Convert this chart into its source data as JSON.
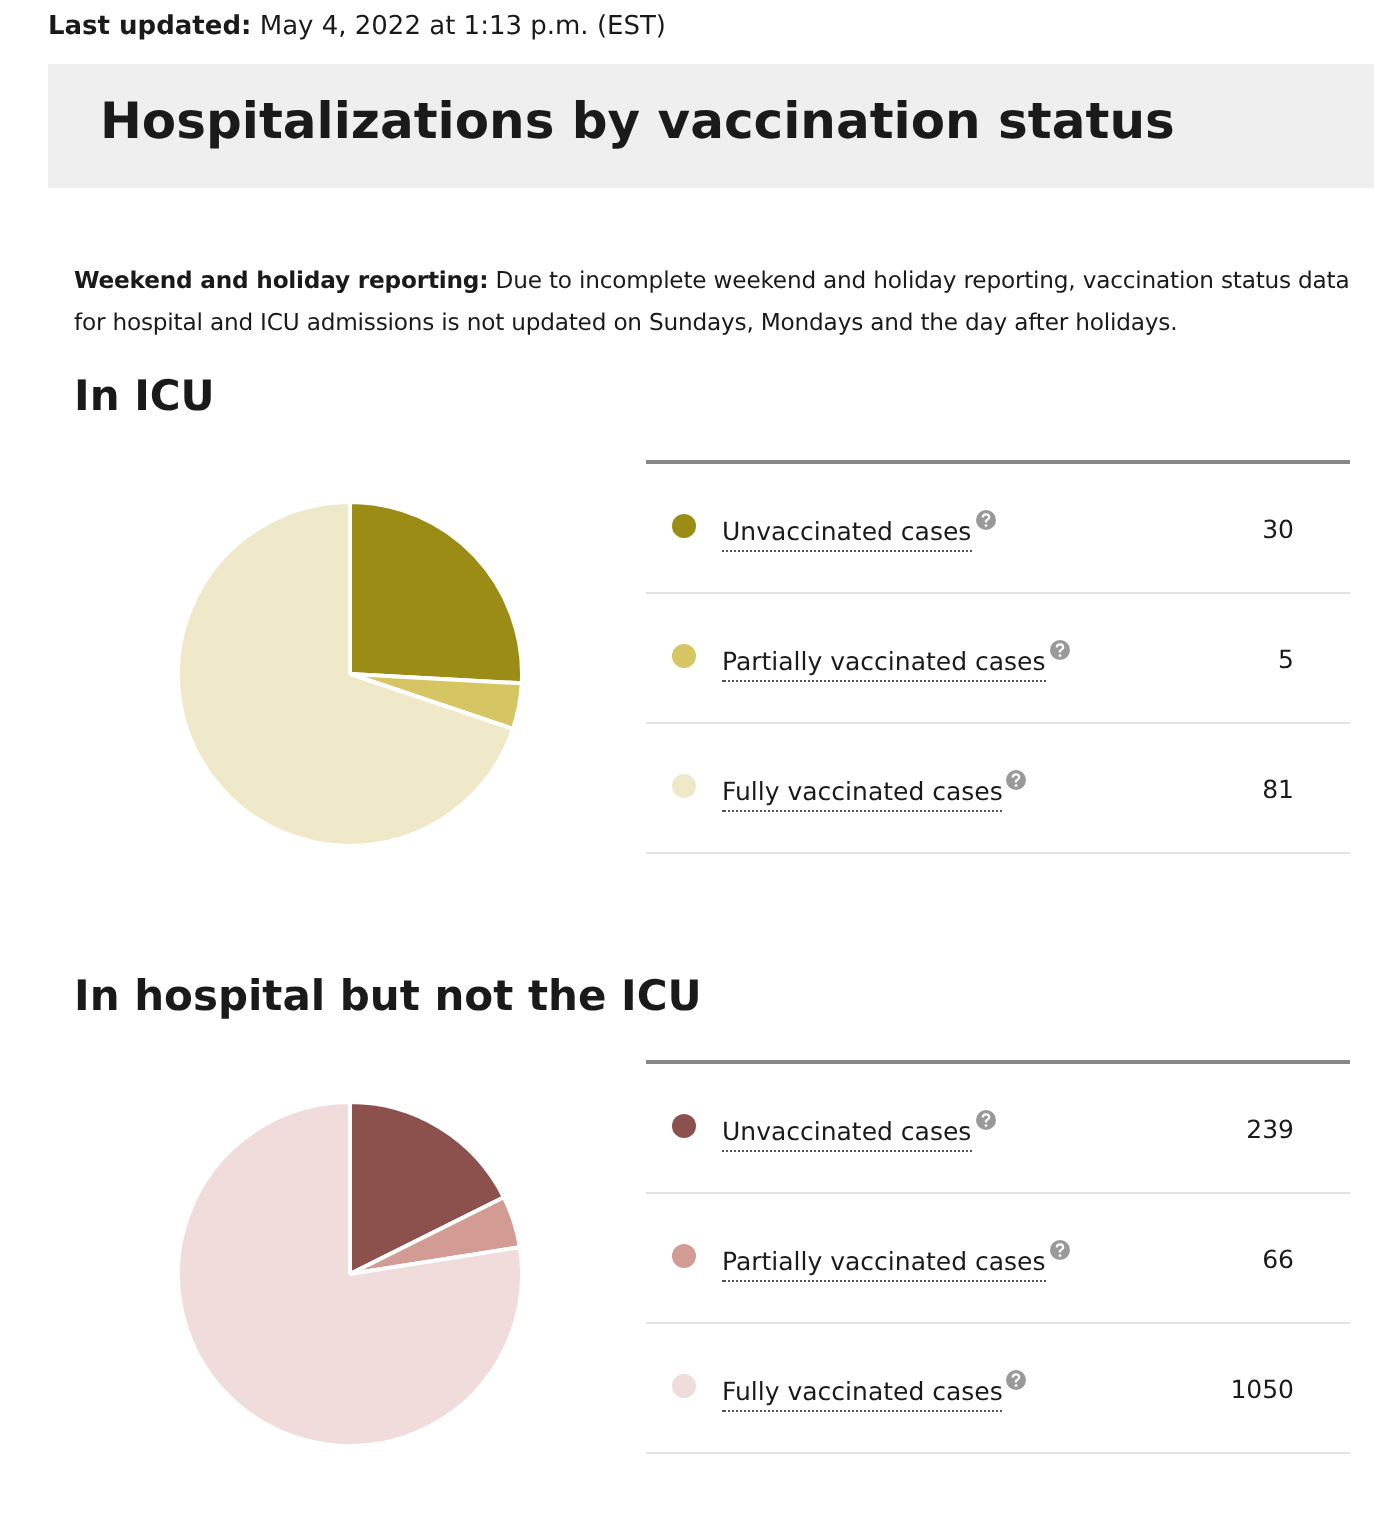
{
  "chart_data": [
    {
      "type": "pie",
      "title": "In ICU",
      "annotations": [
        "Last updated: May 4, 2022 at 1:13 p.m. (EST)",
        "Hospitalizations by vaccination status",
        "Weekend and holiday reporting: Due to incomplete weekend and holiday reporting, vaccination status data for hospital and ICU admissions is not updated on Sundays, Mondays and the day after holidays."
      ],
      "categories": [
        "Unvaccinated cases",
        "Partially vaccinated cases",
        "Fully vaccinated cases"
      ],
      "values": [
        30,
        5,
        81
      ],
      "colors": [
        "#9a8c14",
        "#d6c663",
        "#efe8c9"
      ],
      "legend": "right",
      "data_labels": true
    },
    {
      "type": "pie",
      "title": "In hospital but not the ICU",
      "categories": [
        "Unvaccinated cases",
        "Partially vaccinated cases",
        "Fully vaccinated cases"
      ],
      "values": [
        239,
        66,
        1050
      ],
      "colors": [
        "#8c514d",
        "#d29b94",
        "#f0dcdb"
      ],
      "legend": "right",
      "data_labels": true
    }
  ]
}
